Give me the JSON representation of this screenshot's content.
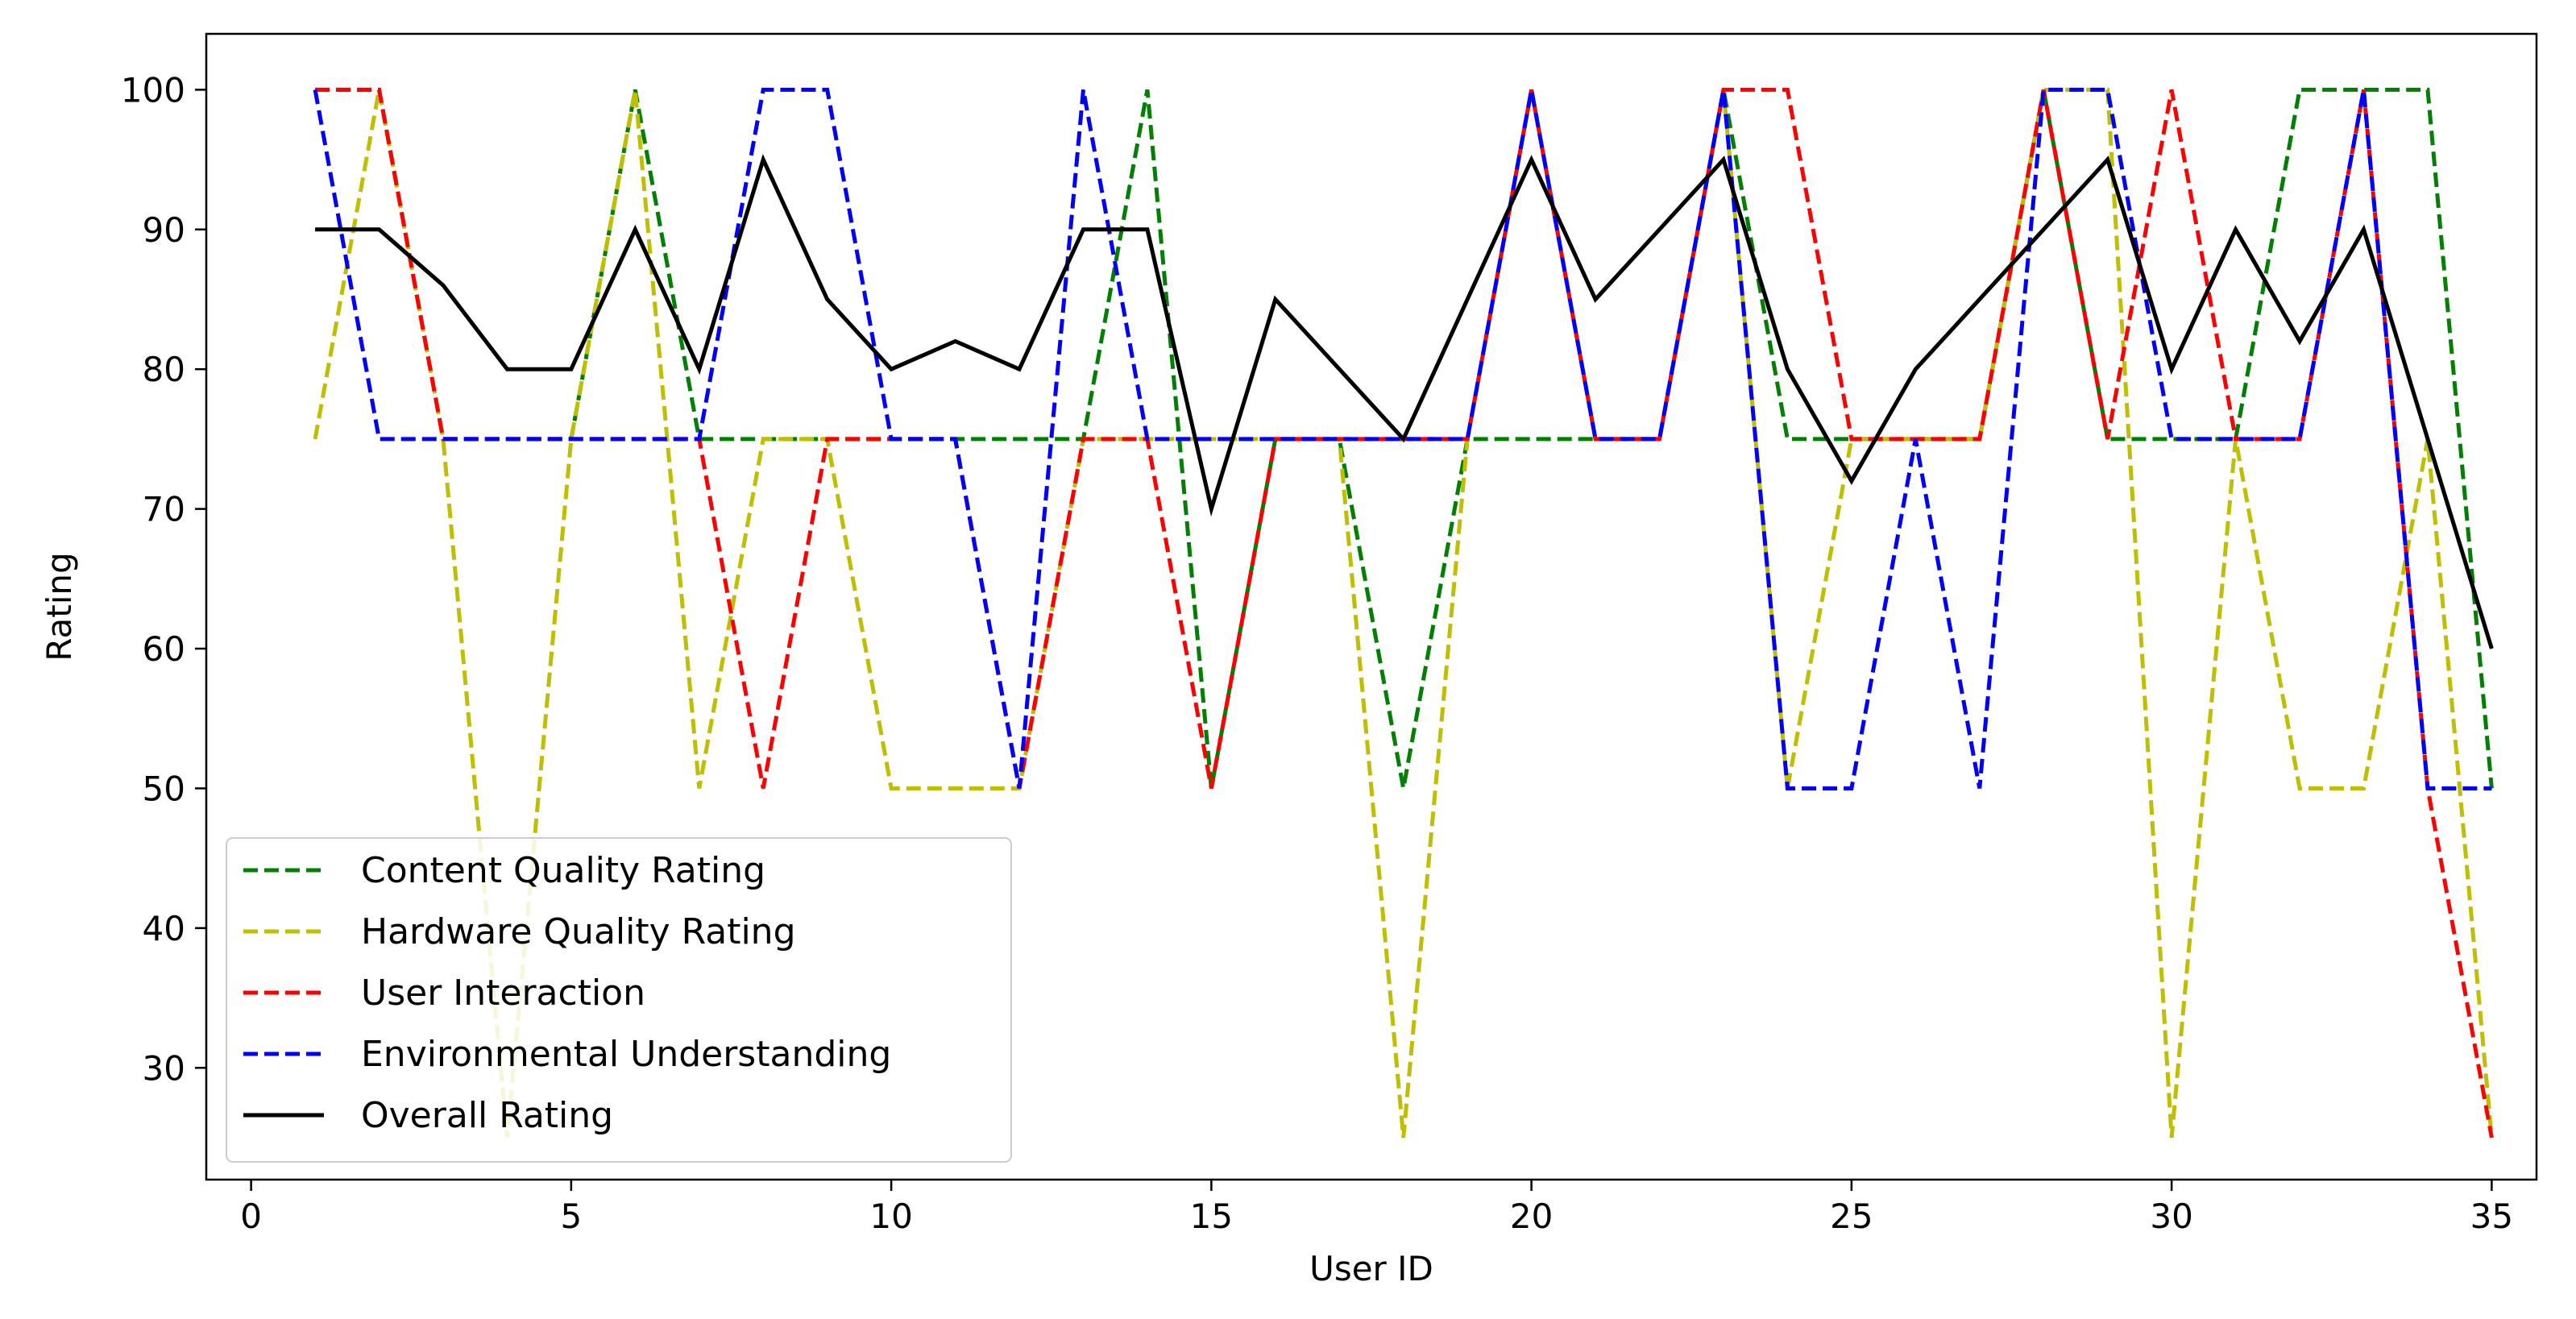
{
  "chart_data": {
    "type": "line",
    "title": "",
    "xlabel": "User ID",
    "ylabel": "Rating",
    "xlim": [
      -0.7,
      35.7
    ],
    "ylim": [
      22,
      104
    ],
    "xticks": [
      0,
      5,
      10,
      15,
      20,
      25,
      30,
      35
    ],
    "yticks": [
      30,
      40,
      50,
      60,
      70,
      80,
      90,
      100
    ],
    "legend_position": "lower-left",
    "x": [
      1,
      2,
      3,
      4,
      5,
      6,
      7,
      8,
      9,
      10,
      11,
      12,
      13,
      14,
      15,
      16,
      17,
      18,
      19,
      20,
      21,
      22,
      23,
      24,
      25,
      26,
      27,
      28,
      29,
      30,
      31,
      32,
      33,
      34,
      35
    ],
    "series": [
      {
        "name": "Content Quality Rating",
        "color": "#008000",
        "dash": true,
        "values": [
          100,
          100,
          75,
          75,
          75,
          100,
          75,
          75,
          75,
          75,
          75,
          75,
          75,
          100,
          50,
          75,
          75,
          50,
          75,
          75,
          75,
          75,
          100,
          75,
          75,
          75,
          75,
          100,
          75,
          75,
          75,
          100,
          100,
          100,
          50
        ]
      },
      {
        "name": "Hardware Quality Rating",
        "color": "#bfbf00",
        "dash": true,
        "values": [
          75,
          100,
          75,
          25,
          75,
          100,
          50,
          75,
          75,
          50,
          50,
          50,
          75,
          75,
          75,
          75,
          75,
          25,
          75,
          100,
          75,
          75,
          100,
          50,
          75,
          75,
          75,
          100,
          100,
          25,
          75,
          50,
          50,
          75,
          25
        ]
      },
      {
        "name": "User Interaction",
        "color": "#ff0000",
        "dash": true,
        "values": [
          100,
          100,
          75,
          75,
          75,
          75,
          75,
          50,
          75,
          75,
          75,
          50,
          75,
          75,
          50,
          75,
          75,
          75,
          75,
          100,
          75,
          75,
          100,
          100,
          75,
          75,
          75,
          100,
          75,
          100,
          75,
          75,
          100,
          50,
          25
        ]
      },
      {
        "name": "Environmental Understanding",
        "color": "#0000ff",
        "dash": true,
        "values": [
          100,
          75,
          75,
          75,
          75,
          75,
          75,
          100,
          100,
          75,
          75,
          50,
          100,
          75,
          75,
          75,
          75,
          75,
          75,
          100,
          75,
          75,
          100,
          50,
          50,
          75,
          50,
          100,
          100,
          75,
          75,
          75,
          100,
          50,
          50
        ]
      },
      {
        "name": "Overall Rating",
        "color": "#000000",
        "dash": false,
        "values": [
          90,
          90,
          86,
          80,
          80,
          90,
          80,
          95,
          85,
          80,
          82,
          80,
          90,
          90,
          70,
          85,
          80,
          75,
          85,
          95,
          85,
          90,
          95,
          80,
          72,
          80,
          85,
          90,
          95,
          80,
          90,
          82,
          90,
          75,
          60
        ]
      }
    ]
  }
}
